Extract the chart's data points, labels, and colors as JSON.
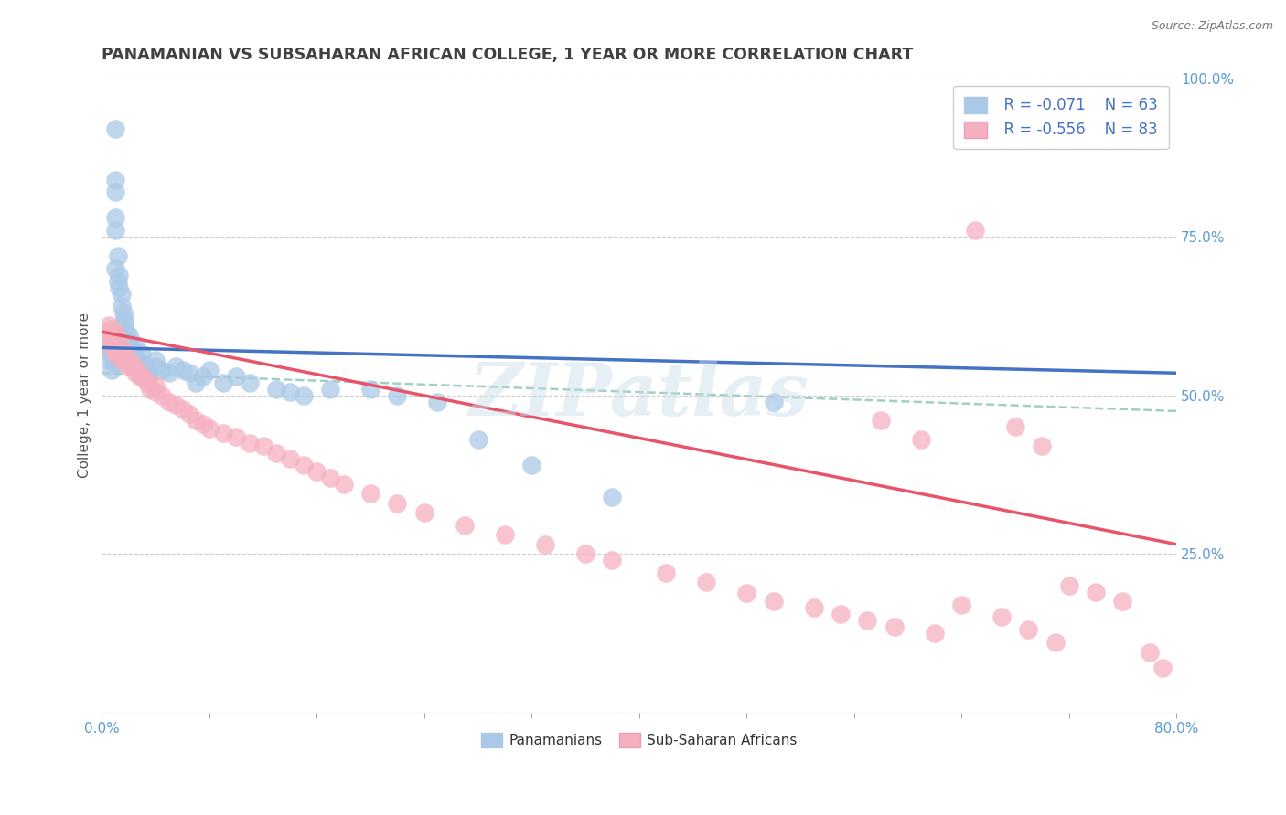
{
  "title": "PANAMANIAN VS SUBSAHARAN AFRICAN COLLEGE, 1 YEAR OR MORE CORRELATION CHART",
  "source_text": "Source: ZipAtlas.com",
  "ylabel": "College, 1 year or more",
  "xlim": [
    0.0,
    0.8
  ],
  "ylim": [
    0.0,
    1.0
  ],
  "xtick_labels": [
    "0.0%",
    "",
    "",
    "",
    "",
    "",
    "",
    "",
    "",
    "",
    "80.0%"
  ],
  "xtick_vals": [
    0.0,
    0.08,
    0.16,
    0.24,
    0.32,
    0.4,
    0.48,
    0.56,
    0.64,
    0.72,
    0.8
  ],
  "ytick_labels_right": [
    "25.0%",
    "50.0%",
    "75.0%",
    "100.0%"
  ],
  "ytick_vals_right": [
    0.25,
    0.5,
    0.75,
    1.0
  ],
  "color_blue": "#aac9e8",
  "color_pink": "#f5b0c0",
  "color_blue_line": "#4472c4",
  "color_pink_line": "#e8546a",
  "color_trendline_dashed": "#90c8b8",
  "R_blue": -0.071,
  "N_blue": 63,
  "R_pink": -0.556,
  "N_pink": 83,
  "legend_label_blue": "Panamanians",
  "legend_label_pink": "Sub-Saharan Africans",
  "watermark": "ZIPatlas",
  "title_color": "#404040",
  "axis_label_color": "#5b9bd5",
  "blue_trend_start_y": 0.575,
  "blue_trend_end_y": 0.535,
  "pink_trend_start_y": 0.6,
  "pink_trend_end_y": 0.265,
  "dashed_trend_start_y": 0.535,
  "dashed_trend_end_y": 0.475,
  "blue_scatter_x": [
    0.005,
    0.005,
    0.005,
    0.007,
    0.007,
    0.008,
    0.008,
    0.008,
    0.009,
    0.009,
    0.01,
    0.01,
    0.01,
    0.01,
    0.01,
    0.01,
    0.012,
    0.012,
    0.013,
    0.013,
    0.015,
    0.015,
    0.016,
    0.017,
    0.017,
    0.018,
    0.018,
    0.02,
    0.02,
    0.022,
    0.023,
    0.025,
    0.025,
    0.027,
    0.028,
    0.03,
    0.032,
    0.033,
    0.035,
    0.04,
    0.04,
    0.045,
    0.05,
    0.055,
    0.06,
    0.065,
    0.07,
    0.075,
    0.08,
    0.09,
    0.1,
    0.11,
    0.13,
    0.14,
    0.15,
    0.17,
    0.2,
    0.22,
    0.25,
    0.28,
    0.32,
    0.38,
    0.5
  ],
  "blue_scatter_y": [
    0.555,
    0.57,
    0.58,
    0.565,
    0.54,
    0.56,
    0.575,
    0.585,
    0.55,
    0.56,
    0.92,
    0.84,
    0.82,
    0.78,
    0.76,
    0.7,
    0.68,
    0.72,
    0.69,
    0.67,
    0.64,
    0.66,
    0.63,
    0.62,
    0.615,
    0.6,
    0.59,
    0.585,
    0.595,
    0.575,
    0.57,
    0.58,
    0.56,
    0.555,
    0.545,
    0.565,
    0.55,
    0.54,
    0.53,
    0.545,
    0.555,
    0.54,
    0.535,
    0.545,
    0.54,
    0.535,
    0.52,
    0.53,
    0.54,
    0.52,
    0.53,
    0.52,
    0.51,
    0.505,
    0.5,
    0.51,
    0.51,
    0.5,
    0.49,
    0.43,
    0.39,
    0.34,
    0.49
  ],
  "pink_scatter_x": [
    0.004,
    0.005,
    0.006,
    0.006,
    0.007,
    0.008,
    0.008,
    0.009,
    0.009,
    0.01,
    0.01,
    0.01,
    0.012,
    0.013,
    0.014,
    0.015,
    0.015,
    0.016,
    0.017,
    0.018,
    0.019,
    0.02,
    0.02,
    0.022,
    0.023,
    0.025,
    0.027,
    0.028,
    0.03,
    0.032,
    0.034,
    0.036,
    0.04,
    0.04,
    0.045,
    0.05,
    0.055,
    0.06,
    0.065,
    0.07,
    0.075,
    0.08,
    0.09,
    0.1,
    0.11,
    0.12,
    0.13,
    0.14,
    0.15,
    0.16,
    0.17,
    0.18,
    0.2,
    0.22,
    0.24,
    0.27,
    0.3,
    0.33,
    0.36,
    0.38,
    0.42,
    0.45,
    0.48,
    0.5,
    0.53,
    0.55,
    0.57,
    0.59,
    0.62,
    0.65,
    0.68,
    0.7,
    0.72,
    0.74,
    0.76,
    0.78,
    0.79,
    0.58,
    0.61,
    0.64,
    0.67,
    0.69,
    0.71
  ],
  "pink_scatter_y": [
    0.6,
    0.61,
    0.595,
    0.585,
    0.605,
    0.59,
    0.575,
    0.6,
    0.58,
    0.595,
    0.57,
    0.565,
    0.575,
    0.57,
    0.58,
    0.56,
    0.555,
    0.565,
    0.555,
    0.56,
    0.55,
    0.555,
    0.545,
    0.55,
    0.545,
    0.535,
    0.54,
    0.53,
    0.53,
    0.525,
    0.52,
    0.51,
    0.515,
    0.505,
    0.5,
    0.49,
    0.485,
    0.478,
    0.47,
    0.46,
    0.455,
    0.448,
    0.44,
    0.435,
    0.425,
    0.42,
    0.408,
    0.4,
    0.39,
    0.38,
    0.37,
    0.36,
    0.345,
    0.33,
    0.315,
    0.295,
    0.28,
    0.265,
    0.25,
    0.24,
    0.22,
    0.205,
    0.188,
    0.175,
    0.165,
    0.155,
    0.145,
    0.135,
    0.125,
    0.76,
    0.45,
    0.42,
    0.2,
    0.19,
    0.175,
    0.095,
    0.07,
    0.46,
    0.43,
    0.17,
    0.15,
    0.13,
    0.11
  ]
}
